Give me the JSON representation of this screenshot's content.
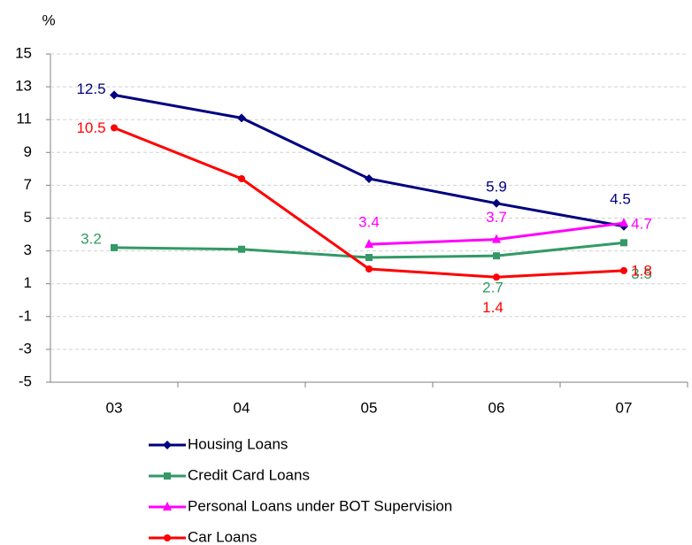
{
  "chart_data": {
    "type": "line",
    "y_label": "%",
    "categories": [
      "03",
      "04",
      "05",
      "06",
      "07"
    ],
    "series": [
      {
        "name": "Housing Loans",
        "color": "#000080",
        "marker": "diamond",
        "values": [
          12.5,
          11.1,
          7.4,
          5.9,
          4.5
        ],
        "value_labels": [
          "12.5",
          null,
          null,
          "5.9",
          "4.5"
        ]
      },
      {
        "name": "Credit Card Loans",
        "color": "#339966",
        "marker": "square",
        "values": [
          3.2,
          3.1,
          2.6,
          2.7,
          3.5
        ],
        "value_labels": [
          "3.2",
          null,
          null,
          "2.7",
          "3.5"
        ]
      },
      {
        "name": "Personal Loans under BOT Supervision",
        "color": "#ff00ff",
        "marker": "triangle",
        "values": [
          null,
          null,
          3.4,
          3.7,
          4.7
        ],
        "value_labels": [
          null,
          null,
          "3.4",
          "3.7",
          "4.7"
        ]
      },
      {
        "name": "Car Loans",
        "color": "#ff0000",
        "marker": "circle",
        "values": [
          10.5,
          7.4,
          1.9,
          1.4,
          1.8
        ],
        "value_labels": [
          "10.5",
          null,
          null,
          "1.4",
          "1.8"
        ]
      }
    ],
    "ylim": [
      -5,
      15
    ],
    "yticks": [
      -5,
      -3,
      -1,
      1,
      3,
      5,
      7,
      9,
      11,
      13,
      15
    ],
    "grid": true
  }
}
